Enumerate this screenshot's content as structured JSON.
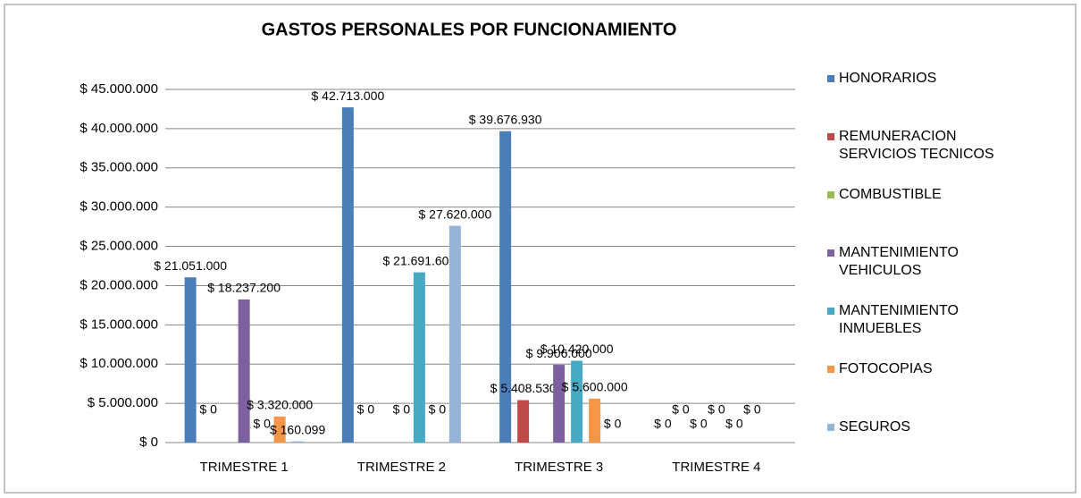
{
  "chart_data": {
    "type": "bar",
    "title": "GASTOS PERSONALES POR FUNCIONAMIENTO",
    "categories": [
      "TRIMESTRE 1",
      "TRIMESTRE 2",
      "TRIMESTRE 3",
      "TRIMESTRE 4"
    ],
    "series": [
      {
        "name": "HONORARIOS",
        "color": "#4a7ebb",
        "values": [
          21051000,
          42713000,
          39676930,
          0
        ],
        "value_labels": [
          "$ 21.051.000",
          "$ 42.713.000",
          "$ 39.676.930",
          "$ 0"
        ]
      },
      {
        "name": "REMUNERACION SERVICIOS TECNICOS",
        "color": "#be4b48",
        "values": [
          0,
          0,
          5408530,
          0
        ],
        "value_labels": [
          "$ 0",
          "$ 0",
          "$ 5.408.530",
          "$ 0"
        ]
      },
      {
        "name": "COMBUSTIBLE",
        "color": "#98b954",
        "values": [
          0,
          0,
          0,
          0
        ],
        "value_labels": [
          null,
          null,
          null,
          "$ 0"
        ]
      },
      {
        "name": "MANTENIMIENTO VEHICULOS",
        "color": "#7d60a0",
        "values": [
          18237200,
          0,
          9906000,
          0
        ],
        "value_labels": [
          "$ 18.237.200",
          "$ 0",
          "$ 9.906.000",
          "$ 0"
        ]
      },
      {
        "name": "MANTENIMIENTO INMUEBLES",
        "color": "#46aac5",
        "values": [
          0,
          21691600,
          10420000,
          0
        ],
        "value_labels": [
          "$ 0",
          "$ 21.691.600",
          "$ 10.420.000",
          "$ 0"
        ]
      },
      {
        "name": "FOTOCOPIAS",
        "color": "#f79646",
        "values": [
          3320000,
          0,
          5600000,
          0
        ],
        "value_labels": [
          "$ 3.320.000",
          "$ 0",
          "$ 5.600.000",
          "$ 0"
        ]
      },
      {
        "name": "SEGUROS",
        "color": "#95b3d7",
        "values": [
          160099,
          27620000,
          0,
          0
        ],
        "value_labels": [
          "$ 160.099",
          "$ 27.620.000",
          "$ 0",
          null
        ]
      }
    ],
    "ylim": [
      0,
      45000000
    ],
    "yticks": [
      {
        "value": 0,
        "label": "$ 0"
      },
      {
        "value": 5000000,
        "label": "$ 5.000.000"
      },
      {
        "value": 10000000,
        "label": "$ 10.000.000"
      },
      {
        "value": 15000000,
        "label": "$ 15.000.000"
      },
      {
        "value": 20000000,
        "label": "$ 20.000.000"
      },
      {
        "value": 25000000,
        "label": "$ 25.000.000"
      },
      {
        "value": 30000000,
        "label": "$ 30.000.000"
      },
      {
        "value": 35000000,
        "label": "$ 35.000.000"
      },
      {
        "value": 40000000,
        "label": "$ 40.000.000"
      },
      {
        "value": 45000000,
        "label": "$ 45.000.000"
      }
    ],
    "grid": true,
    "legend": "right"
  }
}
